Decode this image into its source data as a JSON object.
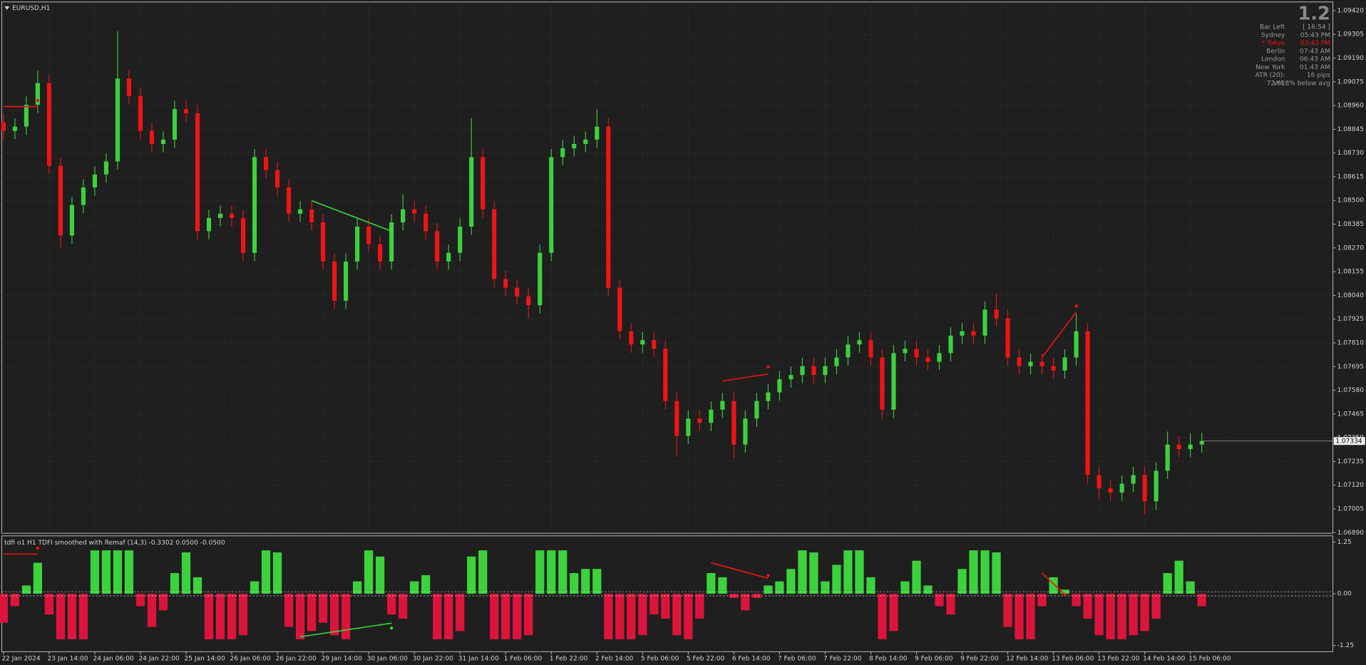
{
  "chart_data": [
    {
      "type": "candlestick",
      "title": "EURUSD,H1",
      "categories": [
        "22 Jan 2024",
        null,
        null,
        null,
        "23 Jan 14:00",
        null,
        null,
        null,
        "24 Jan 06:00",
        null,
        null,
        null,
        "24 Jan 22:00",
        null,
        null,
        null,
        "25 Jan 14:00",
        null,
        null,
        null,
        "26 Jan 06:00",
        null,
        null,
        null,
        "26 Jan 22:00",
        null,
        null,
        null,
        "29 Jan 14:00",
        null,
        null,
        null,
        "30 Jan 06:00",
        null,
        null,
        null,
        "30 Jan 22:00",
        null,
        null,
        null,
        "31 Jan 14:00",
        null,
        null,
        null,
        "1 Feb 06:00",
        null,
        null,
        null,
        "1 Feb 22:00",
        null,
        null,
        null,
        "2 Feb 14:00",
        null,
        null,
        null,
        "5 Feb 06:00",
        null,
        null,
        null,
        "5 Feb 22:00",
        null,
        null,
        null,
        "6 Feb 14:00",
        null,
        null,
        null,
        "7 Feb 06:00",
        null,
        null,
        null,
        "7 Feb 22:00",
        null,
        null,
        null,
        "8 Feb 14:00",
        null,
        null,
        null,
        "9 Feb 06:00",
        null,
        null,
        null,
        "9 Feb 22:00",
        null,
        null,
        null,
        "12 Feb 14:00",
        null,
        null,
        null,
        "13 Feb 06:00",
        null,
        null,
        null,
        "13 Feb 22:00",
        null,
        null,
        null,
        "14 Feb 14:00",
        null,
        null,
        null,
        "15 Feb 06:00",
        null
      ],
      "ohlc": [
        [
          1.08879,
          1.08919,
          1.08797,
          1.08837
        ],
        [
          1.08837,
          1.08898,
          1.08797,
          1.08858
        ],
        [
          1.08858,
          1.09004,
          1.08818,
          1.08964
        ],
        [
          1.08964,
          1.0913,
          1.08924,
          1.09069
        ],
        [
          1.09069,
          1.09109,
          1.08628,
          1.08668
        ],
        [
          1.08668,
          1.08708,
          1.0827,
          1.0833
        ],
        [
          1.0833,
          1.08518,
          1.0829,
          1.08478
        ],
        [
          1.08478,
          1.08603,
          1.08438,
          1.08563
        ],
        [
          1.08563,
          1.08666,
          1.08523,
          1.08626
        ],
        [
          1.08626,
          1.08729,
          1.08586,
          1.08689
        ],
        [
          1.08689,
          1.0932,
          1.08649,
          1.09091
        ],
        [
          1.09091,
          1.09131,
          1.08966,
          1.09006
        ],
        [
          1.09006,
          1.09046,
          1.08797,
          1.08837
        ],
        [
          1.08837,
          1.08877,
          1.08734,
          1.08774
        ],
        [
          1.08774,
          1.08835,
          1.08734,
          1.08795
        ],
        [
          1.08795,
          1.08983,
          1.08755,
          1.08943
        ],
        [
          1.08943,
          1.08983,
          1.08882,
          1.08922
        ],
        [
          1.08922,
          1.08962,
          1.08311,
          1.08351
        ],
        [
          1.08351,
          1.08455,
          1.08311,
          1.08415
        ],
        [
          1.08415,
          1.08476,
          1.08375,
          1.08436
        ],
        [
          1.08436,
          1.08476,
          1.08375,
          1.08415
        ],
        [
          1.08415,
          1.08455,
          1.08206,
          1.08246
        ],
        [
          1.08246,
          1.0875,
          1.08206,
          1.0871
        ],
        [
          1.0871,
          1.0875,
          1.08607,
          1.08647
        ],
        [
          1.08647,
          1.08687,
          1.08523,
          1.08563
        ],
        [
          1.08563,
          1.08603,
          1.08396,
          1.08436
        ],
        [
          1.08436,
          1.08497,
          1.08396,
          1.08457
        ],
        [
          1.08457,
          1.08497,
          1.08354,
          1.08394
        ],
        [
          1.08394,
          1.08434,
          1.08164,
          1.08204
        ],
        [
          1.08204,
          1.08244,
          1.07974,
          1.08014
        ],
        [
          1.08014,
          1.08244,
          1.07974,
          1.08204
        ],
        [
          1.08204,
          1.08413,
          1.08164,
          1.08373
        ],
        [
          1.08373,
          1.08413,
          1.08248,
          1.08288
        ],
        [
          1.08288,
          1.08328,
          1.08164,
          1.08204
        ],
        [
          1.08204,
          1.08434,
          1.08164,
          1.08394
        ],
        [
          1.08394,
          1.0853,
          1.08354,
          1.08457
        ],
        [
          1.08457,
          1.08497,
          1.08396,
          1.08436
        ],
        [
          1.08436,
          1.08476,
          1.08311,
          1.08351
        ],
        [
          1.08351,
          1.08391,
          1.08164,
          1.08204
        ],
        [
          1.08204,
          1.08286,
          1.08164,
          1.08246
        ],
        [
          1.08246,
          1.08413,
          1.08206,
          1.08373
        ],
        [
          1.08373,
          1.089,
          1.08333,
          1.0871
        ],
        [
          1.0871,
          1.0875,
          1.08417,
          1.08457
        ],
        [
          1.08457,
          1.08497,
          1.08079,
          1.08119
        ],
        [
          1.08119,
          1.08159,
          1.08037,
          1.08077
        ],
        [
          1.08077,
          1.08117,
          1.07995,
          1.08035
        ],
        [
          1.08035,
          1.08075,
          1.0793,
          1.07992
        ],
        [
          1.07992,
          1.08286,
          1.07952,
          1.08246
        ],
        [
          1.08246,
          1.0875,
          1.08206,
          1.0871
        ],
        [
          1.0871,
          1.08793,
          1.0867,
          1.08753
        ],
        [
          1.08753,
          1.08814,
          1.08713,
          1.08774
        ],
        [
          1.08774,
          1.08835,
          1.08734,
          1.08795
        ],
        [
          1.08795,
          1.0894,
          1.08755,
          1.08858
        ],
        [
          1.08858,
          1.08898,
          1.08037,
          1.08077
        ],
        [
          1.08077,
          1.08117,
          1.07826,
          1.07866
        ],
        [
          1.07866,
          1.07906,
          1.07762,
          1.07802
        ],
        [
          1.07802,
          1.07863,
          1.07762,
          1.07823
        ],
        [
          1.07823,
          1.07863,
          1.07741,
          1.07781
        ],
        [
          1.07781,
          1.07821,
          1.07488,
          1.07528
        ],
        [
          1.07528,
          1.07568,
          1.0726,
          1.07359
        ],
        [
          1.07359,
          1.07483,
          1.07319,
          1.07443
        ],
        [
          1.07443,
          1.07483,
          1.07382,
          1.07422
        ],
        [
          1.07422,
          1.07526,
          1.07382,
          1.07486
        ],
        [
          1.07486,
          1.07568,
          1.07446,
          1.07528
        ],
        [
          1.07528,
          1.07568,
          1.0725,
          1.07317
        ],
        [
          1.07317,
          1.07483,
          1.07277,
          1.07443
        ],
        [
          1.07443,
          1.07568,
          1.07403,
          1.07528
        ],
        [
          1.07528,
          1.0761,
          1.07488,
          1.0757
        ],
        [
          1.0757,
          1.07673,
          1.0753,
          1.07633
        ],
        [
          1.07633,
          1.07694,
          1.07593,
          1.07654
        ],
        [
          1.07654,
          1.07737,
          1.07614,
          1.07697
        ],
        [
          1.07697,
          1.07737,
          1.07614,
          1.07654
        ],
        [
          1.07654,
          1.07737,
          1.07614,
          1.07697
        ],
        [
          1.07697,
          1.07779,
          1.07657,
          1.07739
        ],
        [
          1.07739,
          1.07842,
          1.07699,
          1.07802
        ],
        [
          1.07802,
          1.07863,
          1.07762,
          1.07823
        ],
        [
          1.07823,
          1.07863,
          1.07699,
          1.07739
        ],
        [
          1.07739,
          1.07779,
          1.0744,
          1.07486
        ],
        [
          1.07486,
          1.078,
          1.07446,
          1.0776
        ],
        [
          1.0776,
          1.07821,
          1.0772,
          1.07781
        ],
        [
          1.07781,
          1.07821,
          1.07699,
          1.07739
        ],
        [
          1.07739,
          1.07779,
          1.07678,
          1.07718
        ],
        [
          1.07718,
          1.078,
          1.07678,
          1.0776
        ],
        [
          1.0776,
          1.07885,
          1.0772,
          1.07845
        ],
        [
          1.07845,
          1.07906,
          1.07805,
          1.07866
        ],
        [
          1.07866,
          1.07906,
          1.07805,
          1.07845
        ],
        [
          1.07845,
          1.08011,
          1.07805,
          1.07971
        ],
        [
          1.07971,
          1.0805,
          1.07889,
          1.07929
        ],
        [
          1.07929,
          1.07969,
          1.07699,
          1.07739
        ],
        [
          1.07739,
          1.07779,
          1.07657,
          1.07697
        ],
        [
          1.07697,
          1.07758,
          1.07657,
          1.07718
        ],
        [
          1.07718,
          1.07758,
          1.07657,
          1.07697
        ],
        [
          1.07697,
          1.07737,
          1.07636,
          1.07676
        ],
        [
          1.07676,
          1.07779,
          1.07636,
          1.07739
        ],
        [
          1.07739,
          1.0795,
          1.07699,
          1.07866
        ],
        [
          1.07866,
          1.07906,
          1.07129,
          1.07169
        ],
        [
          1.07169,
          1.07209,
          1.0705,
          1.07105
        ],
        [
          1.07105,
          1.07145,
          1.07044,
          1.07084
        ],
        [
          1.07084,
          1.07167,
          1.07044,
          1.07127
        ],
        [
          1.07127,
          1.07209,
          1.07087,
          1.07169
        ],
        [
          1.07169,
          1.07209,
          1.0698,
          1.07042
        ],
        [
          1.07042,
          1.0723,
          1.07002,
          1.0719
        ],
        [
          1.0719,
          1.0738,
          1.0715,
          1.07317
        ],
        [
          1.07317,
          1.07357,
          1.07255,
          1.07295
        ],
        [
          1.07295,
          1.0737,
          1.07255,
          1.07317
        ],
        [
          1.07317,
          1.07374,
          1.07277,
          1.07334
        ]
      ],
      "up_color": "#3cd23c",
      "down_color": "#f01414",
      "ylim": [
        1.06887,
        1.09462
      ],
      "yticks": [
        {
          "value": 1.0689,
          "label": "1.06890"
        },
        {
          "value": 1.07005,
          "label": "1.07005"
        },
        {
          "value": 1.0712,
          "label": "1.07120"
        },
        {
          "value": 1.07235,
          "label": "1.07235"
        },
        {
          "value": 1.0735,
          "label": "1.07350"
        },
        {
          "value": 1.07465,
          "label": "1.07465"
        },
        {
          "value": 1.0758,
          "label": "1.07580"
        },
        {
          "value": 1.07695,
          "label": "1.07695"
        },
        {
          "value": 1.0781,
          "label": "1.07810"
        },
        {
          "value": 1.07925,
          "label": "1.07925"
        },
        {
          "value": 1.0804,
          "label": "1.08040"
        },
        {
          "value": 1.08155,
          "label": "1.08155"
        },
        {
          "value": 1.0827,
          "label": "1.08270"
        },
        {
          "value": 1.08385,
          "label": "1.08385"
        },
        {
          "value": 1.085,
          "label": "1.08500"
        },
        {
          "value": 1.08615,
          "label": "1.08615"
        },
        {
          "value": 1.0873,
          "label": "1.08730"
        },
        {
          "value": 1.08845,
          "label": "1.08845"
        },
        {
          "value": 1.0896,
          "label": "1.08960"
        },
        {
          "value": 1.09075,
          "label": "1.09075"
        },
        {
          "value": 1.0919,
          "label": "1.09190"
        },
        {
          "value": 1.09305,
          "label": "1.09305"
        },
        {
          "value": 1.0942,
          "label": "1.09420"
        }
      ],
      "grid": true,
      "lines": [
        {
          "from": [
            0,
            1.08955
          ],
          "to": [
            3,
            1.08955
          ],
          "dot": [
            3,
            1.08985
          ],
          "color": "#f01414"
        },
        {
          "from": [
            27,
            1.08499
          ],
          "to": [
            34,
            1.08351
          ],
          "dot": [
            34,
            1.08322
          ],
          "color": "#3cd23c"
        },
        {
          "from": [
            63,
            1.07625
          ],
          "to": [
            67,
            1.07659
          ],
          "dot": [
            67,
            1.07693
          ],
          "color": "#f01414"
        },
        {
          "from": [
            91,
            1.07739
          ],
          "to": [
            94,
            1.07959
          ],
          "dot": [
            94,
            1.07989
          ],
          "color": "#f01414"
        }
      ],
      "info": {
        "spread": 1.2,
        "rows": [
          {
            "label": "Bar Left",
            "value": "[ 16:54 ]",
            "color": "#9a9a9a"
          },
          {
            "label": "Sydney",
            "value": "05:43 PM",
            "color": "#9a9a9a"
          },
          {
            "label": "* Tokyo",
            "value": "03:43 PM",
            "color": "#f01414"
          },
          {
            "label": "Berlin",
            "value": "07:43 AM",
            "color": "#9a9a9a"
          },
          {
            "label": "London",
            "value": "06:43 AM",
            "color": "#9a9a9a"
          },
          {
            "label": "New York",
            "value": "01:43 AM",
            "color": "#9a9a9a"
          },
          {
            "label": "ATR (20):",
            "value": "16 pips",
            "color": "#9a9a9a"
          },
          {
            "label": "Vol:",
            "value": "72.618% below avg",
            "color": "#9a9a9a"
          }
        ]
      }
    },
    {
      "type": "histogram",
      "title": "tdfi o1 H1 TDFI smoothed with Remaf (14,3) -0.3302 0.0500 -0.0500",
      "values": [
        -0.7,
        -0.3,
        0.2,
        0.75,
        -0.5,
        -1.1,
        -1.1,
        -1.1,
        1.05,
        1.05,
        1.05,
        1.05,
        -0.3,
        -0.8,
        -0.4,
        0.5,
        1.0,
        0.4,
        -1.1,
        -1.1,
        -1.1,
        -1.0,
        0.3,
        1.05,
        1.0,
        -0.8,
        -1.1,
        -0.9,
        -0.7,
        -1.0,
        -1.1,
        0.3,
        1.05,
        0.9,
        -0.5,
        -0.6,
        0.3,
        0.45,
        -1.1,
        -1.1,
        -0.9,
        0.9,
        1.05,
        -1.1,
        -1.1,
        -1.1,
        -1.0,
        1.05,
        1.05,
        1.05,
        0.5,
        0.6,
        0.6,
        -1.1,
        -1.1,
        -1.1,
        -1.0,
        -0.5,
        -0.6,
        -1.0,
        -1.1,
        -0.6,
        0.5,
        0.4,
        -0.1,
        -0.4,
        -0.1,
        0.2,
        0.3,
        0.6,
        1.05,
        1.0,
        0.3,
        0.7,
        1.05,
        1.05,
        0.4,
        -1.1,
        -0.9,
        0.3,
        0.8,
        0.2,
        -0.3,
        -0.5,
        0.6,
        1.05,
        1.05,
        1.0,
        -0.8,
        -1.1,
        -1.1,
        -0.3,
        0.4,
        0.1,
        -0.3,
        -0.6,
        -1.0,
        -1.1,
        -1.1,
        -1.0,
        -0.9,
        -0.6,
        0.5,
        0.8,
        0.3,
        -0.3
      ],
      "up_color": "#3cd23c",
      "down_color": "#dc143c",
      "ylim": [
        -1.4,
        1.4
      ],
      "yticks": [
        -1.25,
        {
          "value": 0,
          "label": "0.00"
        },
        1.25
      ],
      "levels": [
        0.05,
        -0.05
      ],
      "lines": [
        {
          "from": [
            0,
            0.96
          ],
          "to": [
            3,
            0.96
          ],
          "dot": [
            3,
            1.1
          ],
          "color": "#f01414"
        },
        {
          "from": [
            26,
            -1.04
          ],
          "to": [
            34,
            -0.71
          ],
          "dot": [
            34,
            -0.83
          ],
          "color": "#3cd23c"
        },
        {
          "from": [
            62,
            0.75
          ],
          "to": [
            67,
            0.375
          ],
          "dot": [
            67,
            0.44
          ],
          "color": "#f01414"
        },
        {
          "from": [
            91,
            0.5
          ],
          "to": [
            93,
            -0.02
          ],
          "dot": [
            93,
            -0.02
          ],
          "color": "#f01414"
        }
      ]
    }
  ]
}
